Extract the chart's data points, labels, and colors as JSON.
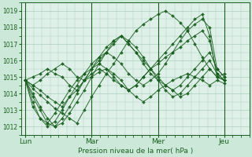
{
  "xlabel": "Pression niveau de la mer( hPa )",
  "bg_color": "#cce8d8",
  "plot_bg_color": "#dff0e8",
  "line_color": "#1a6020",
  "marker_color": "#1a6020",
  "grid_color": "#aaceba",
  "tick_color": "#1a6020",
  "spine_color": "#1a6020",
  "ylim": [
    1011.5,
    1019.5
  ],
  "yticks": [
    1012,
    1013,
    1014,
    1015,
    1016,
    1017,
    1018,
    1019
  ],
  "xtick_labels": [
    "Lun",
    "Mar",
    "Mer",
    "Jeu"
  ],
  "xtick_positions": [
    0,
    8,
    16,
    24
  ],
  "xlim": [
    -0.5,
    27
  ],
  "series": [
    [
      1014.8,
      1014.3,
      1013.9,
      1013.5,
      1013.1,
      1012.8,
      1012.5,
      1012.2,
      1013.0,
      1013.8,
      1014.5,
      1015.2,
      1015.8,
      1016.5,
      1017.2,
      1017.8,
      1018.2,
      1018.5,
      1018.8,
      1019.0,
      1018.7,
      1018.3,
      1017.8,
      1017.0,
      1016.2,
      1015.5,
      1015.0,
      1015.2
    ],
    [
      1014.8,
      1014.0,
      1013.2,
      1012.5,
      1012.0,
      1012.2,
      1012.8,
      1013.5,
      1014.2,
      1015.0,
      1015.8,
      1016.5,
      1017.2,
      1017.5,
      1017.0,
      1016.5,
      1015.8,
      1015.2,
      1014.8,
      1014.5,
      1014.2,
      1014.5,
      1015.0,
      1015.5,
      1016.0,
      1016.5,
      1015.5,
      1015.0
    ],
    [
      1014.8,
      1013.5,
      1012.5,
      1012.0,
      1012.3,
      1013.0,
      1013.8,
      1014.5,
      1015.2,
      1015.8,
      1016.2,
      1016.5,
      1016.2,
      1015.8,
      1015.2,
      1014.8,
      1014.5,
      1014.8,
      1015.2,
      1015.8,
      1016.5,
      1017.2,
      1017.8,
      1018.2,
      1018.5,
      1018.0,
      1015.5,
      1015.0
    ],
    [
      1014.8,
      1013.8,
      1013.0,
      1012.2,
      1012.0,
      1012.5,
      1013.2,
      1014.0,
      1014.8,
      1015.5,
      1016.0,
      1016.5,
      1017.0,
      1017.5,
      1017.2,
      1016.8,
      1016.2,
      1015.5,
      1014.8,
      1014.2,
      1013.8,
      1014.0,
      1014.5,
      1015.0,
      1015.5,
      1016.0,
      1015.2,
      1014.8
    ],
    [
      1014.8,
      1014.5,
      1014.2,
      1013.8,
      1013.5,
      1013.2,
      1013.8,
      1014.2,
      1014.8,
      1015.2,
      1015.5,
      1015.2,
      1014.8,
      1014.5,
      1014.2,
      1014.5,
      1015.0,
      1015.5,
      1016.0,
      1016.5,
      1017.0,
      1017.5,
      1018.0,
      1018.5,
      1018.8,
      1017.5,
      1015.0,
      1014.8
    ],
    [
      1014.8,
      1015.0,
      1015.2,
      1015.5,
      1015.2,
      1015.0,
      1014.5,
      1014.2,
      1014.8,
      1015.5,
      1016.2,
      1016.8,
      1017.2,
      1017.5,
      1017.0,
      1016.5,
      1016.0,
      1015.5,
      1015.0,
      1014.5,
      1014.2,
      1013.8,
      1014.0,
      1014.5,
      1015.0,
      1015.5,
      1015.0,
      1014.8
    ],
    [
      1014.8,
      1014.5,
      1014.8,
      1015.2,
      1015.5,
      1015.8,
      1015.5,
      1015.0,
      1014.8,
      1015.0,
      1015.3,
      1015.5,
      1015.2,
      1014.8,
      1014.2,
      1013.8,
      1013.5,
      1013.8,
      1014.2,
      1014.5,
      1014.8,
      1015.0,
      1015.2,
      1015.0,
      1014.8,
      1014.5,
      1014.8,
      1014.6
    ],
    [
      1014.8,
      1013.2,
      1012.5,
      1012.2,
      1012.8,
      1013.5,
      1014.2,
      1014.8,
      1015.2,
      1015.5,
      1015.8,
      1015.5,
      1015.0,
      1014.5,
      1014.2,
      1014.5,
      1015.0,
      1015.5,
      1015.8,
      1016.2,
      1016.5,
      1016.8,
      1017.2,
      1017.5,
      1017.8,
      1017.2,
      1015.2,
      1014.8
    ]
  ]
}
